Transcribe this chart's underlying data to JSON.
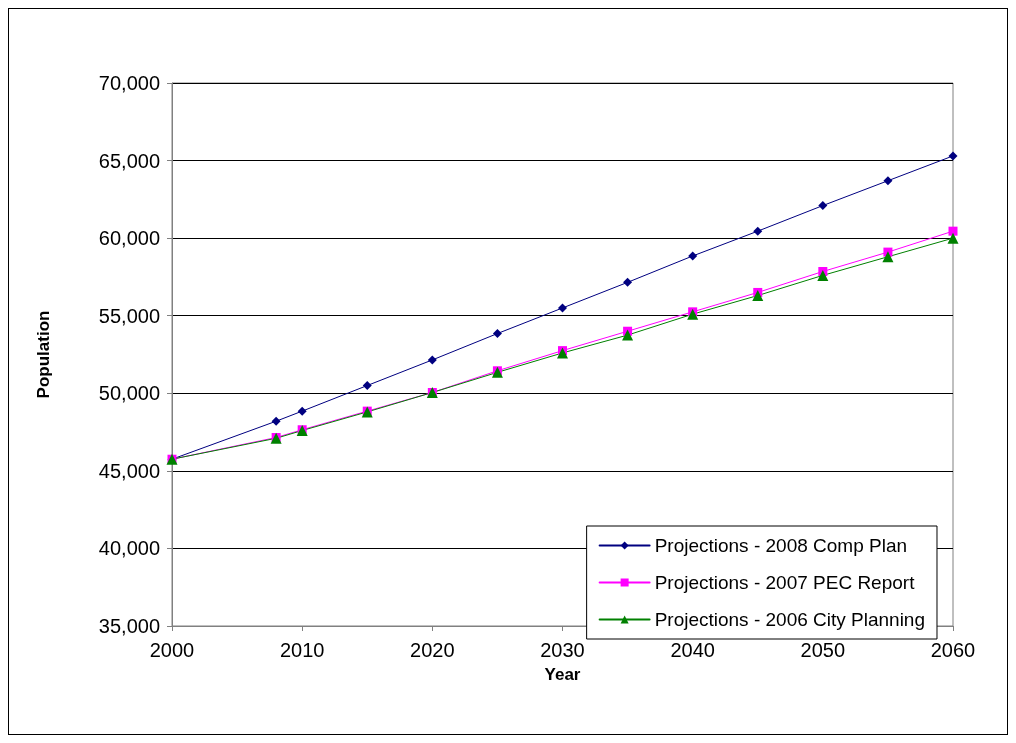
{
  "chart_data": {
    "type": "line",
    "xlabel": "Year",
    "ylabel": "Population",
    "x": [
      2000,
      2008,
      2010,
      2015,
      2020,
      2025,
      2030,
      2035,
      2040,
      2045,
      2050,
      2055,
      2060
    ],
    "series": [
      {
        "name": "Projections - 2008 Comp Plan",
        "color": "#000080",
        "marker": "diamond",
        "values": [
          45750,
          48200,
          48850,
          50500,
          52150,
          53850,
          55500,
          57150,
          58850,
          60450,
          62100,
          63700,
          65300
        ]
      },
      {
        "name": "Projections - 2007 PEC Report",
        "color": "#ff00ff",
        "marker": "square",
        "values": [
          45750,
          47150,
          47650,
          48850,
          50050,
          51450,
          52750,
          54000,
          55250,
          56500,
          57850,
          59100,
          60450
        ]
      },
      {
        "name": "Projections - 2006 City Planning",
        "color": "#008000",
        "marker": "triangle",
        "values": [
          45750,
          47100,
          47600,
          48800,
          50050,
          51350,
          52600,
          53750,
          55100,
          56300,
          57600,
          58800,
          60000
        ]
      }
    ],
    "xlim": [
      2000,
      2060
    ],
    "xticks": [
      2000,
      2010,
      2020,
      2030,
      2040,
      2050,
      2060
    ],
    "ylim": [
      35000,
      70000
    ],
    "yticks": [
      {
        "value": 35000,
        "label": "35,000"
      },
      {
        "value": 40000,
        "label": "40,000"
      },
      {
        "value": 45000,
        "label": "45,000"
      },
      {
        "value": 50000,
        "label": "50,000"
      },
      {
        "value": 55000,
        "label": "55,000"
      },
      {
        "value": 60000,
        "label": "60,000"
      },
      {
        "value": 65000,
        "label": "65,000"
      },
      {
        "value": 70000,
        "label": "70,000"
      }
    ],
    "grid": "y",
    "legend": "bottom right",
    "line_style": "solid"
  }
}
